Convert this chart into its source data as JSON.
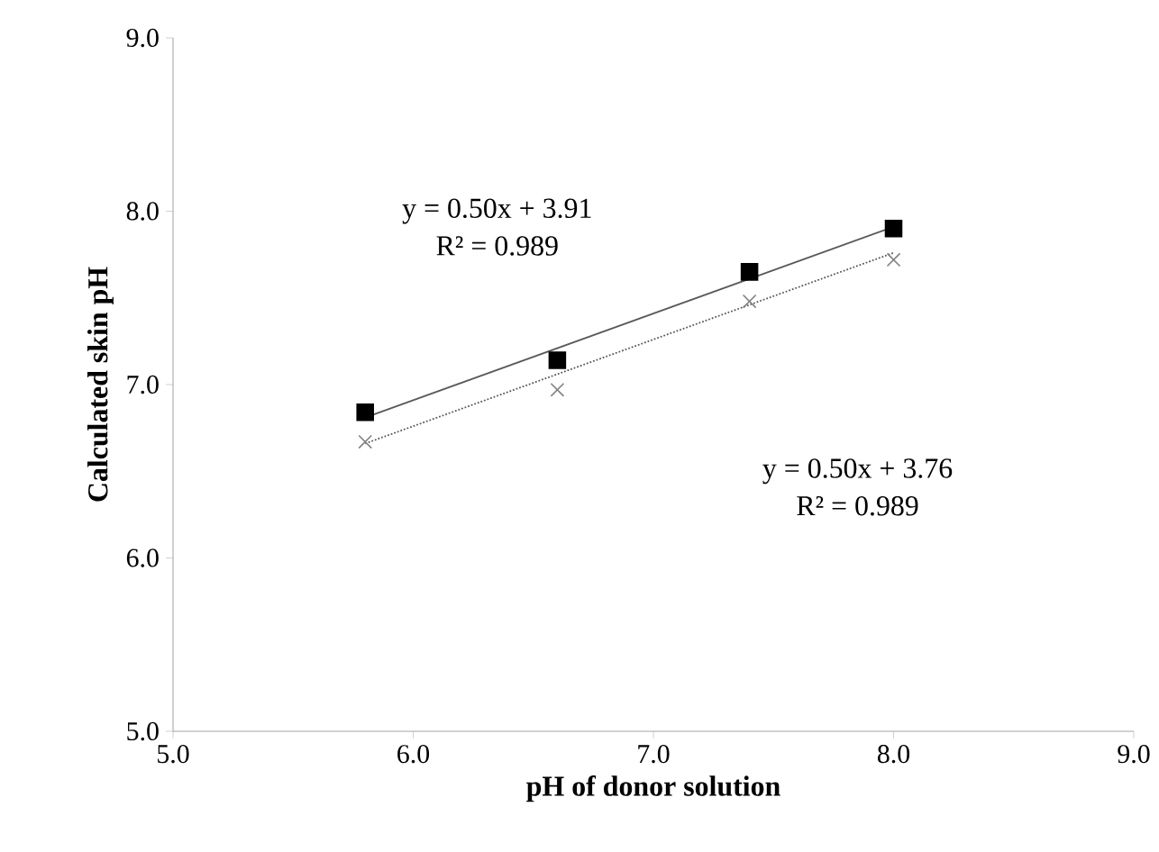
{
  "chart_data": {
    "type": "scatter",
    "xlabel": "pH of donor solution",
    "ylabel": "Calculated  skin pH",
    "xlim": [
      5,
      9
    ],
    "ylim": [
      5,
      9
    ],
    "xticks": [
      {
        "value": 5,
        "label": "5.0"
      },
      {
        "value": 6,
        "label": "6.0"
      },
      {
        "value": 7,
        "label": "7.0"
      },
      {
        "value": 8,
        "label": "8.0"
      },
      {
        "value": 9,
        "label": "9.0"
      }
    ],
    "yticks": [
      {
        "value": 5,
        "label": "5.0"
      },
      {
        "value": 6,
        "label": "6.0"
      },
      {
        "value": 7,
        "label": "7.0"
      },
      {
        "value": 8,
        "label": "8.0"
      },
      {
        "value": 9,
        "label": "9.0"
      }
    ],
    "grid": false,
    "series": [
      {
        "marker": "square",
        "color": "#000000",
        "x": [
          5.8,
          6.6,
          7.4,
          8.0
        ],
        "values": [
          6.84,
          7.14,
          7.65,
          7.9
        ]
      },
      {
        "marker": "cross",
        "color": "#808080",
        "x": [
          5.8,
          6.6,
          7.4,
          8.0
        ],
        "values": [
          6.67,
          6.97,
          7.48,
          7.72
        ]
      },
      {
        "type": "line",
        "marker": "none",
        "line_style": "solid",
        "color": "#595959",
        "x": [
          5.8,
          8.0
        ],
        "values": [
          6.81,
          7.91
        ]
      },
      {
        "type": "line",
        "marker": "none",
        "line_style": "dotted",
        "color": "#595959",
        "x": [
          5.8,
          8.0
        ],
        "values": [
          6.66,
          7.76
        ]
      }
    ],
    "annotations": [
      "y = 0.50x + 3.91",
      "R² = 0.989",
      "y = 0.50x + 3.76",
      "R² = 0.989"
    ]
  }
}
